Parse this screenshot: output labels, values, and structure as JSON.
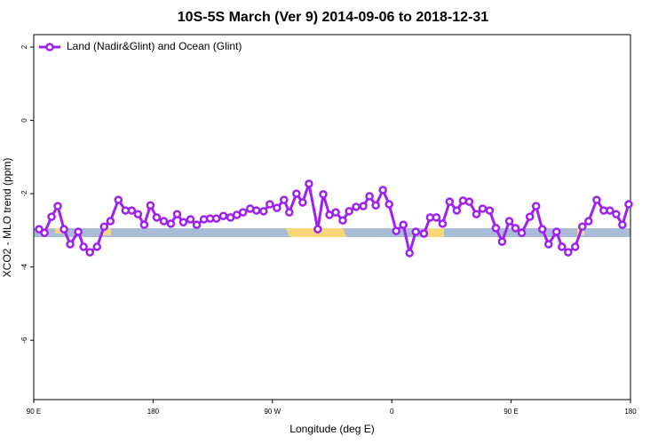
{
  "chart_data": {
    "type": "line",
    "title": "10S-5S March (Ver 9)   2014-09-06 to 2018-12-31",
    "x_label": "Longitude (deg E)",
    "y_label": "XCO2 - MLO trend (ppm)",
    "xlim": [
      90,
      540
    ],
    "ylim": [
      -7.62,
      2.34
    ],
    "xticks": [
      {
        "value": 90,
        "label": "90 E"
      },
      180,
      {
        "value": 270,
        "label": "90 W"
      },
      {
        "value": 360,
        "label": "0"
      },
      {
        "value": 450,
        "label": "90 E"
      },
      {
        "value": 540,
        "label": "180"
      }
    ],
    "yticks": [
      2,
      0,
      -2,
      -4,
      -6
    ],
    "legend": "top-left",
    "x": [
      94.0,
      98.1,
      103.4,
      108.1,
      112.8,
      117.5,
      123.6,
      127.6,
      132.3,
      137.7,
      143.1,
      147.8,
      153.8,
      159.2,
      163.9,
      168.6,
      173.3,
      178.0,
      182.7,
      188.1,
      193.4,
      198.1,
      202.8,
      208.2,
      212.9,
      218.3,
      223.0,
      227.7,
      233.0,
      238.4,
      243.1,
      247.8,
      253.2,
      257.9,
      263.3,
      268.0,
      273.4,
      278.7,
      282.7,
      288.1,
      292.8,
      297.5,
      304.2,
      308.3,
      313.0,
      317.7,
      323.0,
      327.8,
      333.1,
      338.5,
      343.2,
      347.9,
      353.3,
      358.0,
      363.3,
      368.7,
      373.4,
      378.1,
      384.2,
      388.9,
      393.6,
      398.3,
      403.6,
      409.0,
      413.7,
      418.4,
      423.8,
      428.5,
      433.8,
      438.5,
      443.2,
      448.6,
      453.3,
      458.0,
      464.1,
      468.8,
      473.5,
      478.2,
      484.2,
      488.3,
      493.0,
      498.3,
      503.7,
      508.4,
      514.5,
      519.8,
      524.5,
      529.2,
      533.9,
      538.6
    ],
    "series": [
      {
        "name": "Land (Nadir&Glint) and Ocean (Glint)",
        "color": "#a020f0",
        "values": [
          -2.97,
          -3.07,
          -2.63,
          -2.34,
          -2.97,
          -3.38,
          -3.04,
          -3.45,
          -3.6,
          -3.45,
          -2.9,
          -2.75,
          -2.17,
          -2.46,
          -2.46,
          -2.56,
          -2.85,
          -2.32,
          -2.65,
          -2.75,
          -2.82,
          -2.56,
          -2.78,
          -2.7,
          -2.85,
          -2.7,
          -2.68,
          -2.68,
          -2.61,
          -2.65,
          -2.58,
          -2.51,
          -2.41,
          -2.46,
          -2.48,
          -2.29,
          -2.39,
          -2.17,
          -2.51,
          -2.0,
          -2.24,
          -1.73,
          -2.97,
          -2.02,
          -2.58,
          -2.51,
          -2.73,
          -2.48,
          -2.36,
          -2.34,
          -2.07,
          -2.32,
          -1.9,
          -2.29,
          -3.02,
          -2.85,
          -3.62,
          -3.04,
          -3.09,
          -2.65,
          -2.65,
          -2.82,
          -2.22,
          -2.46,
          -2.19,
          -2.22,
          -2.56,
          -2.41,
          -2.46,
          -2.94,
          -3.31,
          -2.75,
          -2.94,
          -3.07,
          -2.63,
          -2.34,
          -2.97,
          -3.38,
          -3.04,
          -3.45,
          -3.6,
          -3.45,
          -2.9,
          -2.75,
          -2.17,
          -2.46,
          -2.46,
          -2.56,
          -2.85,
          -2.29
        ]
      }
    ]
  }
}
